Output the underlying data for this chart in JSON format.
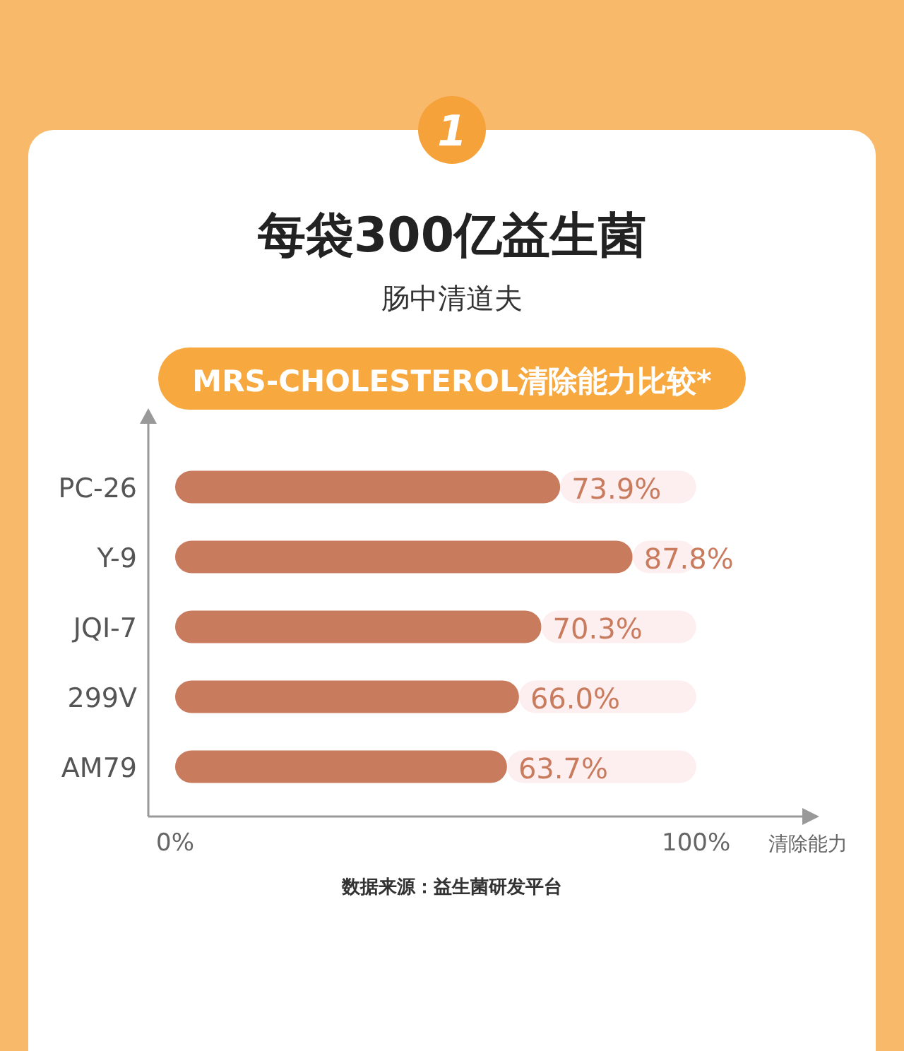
{
  "chart_data": {
    "type": "bar",
    "orientation": "horizontal",
    "stacked": true,
    "title": "每袋300亿益生菌",
    "subtitle": "肠中清道夫",
    "xlabel": "清除能力",
    "annotations": [
      "1",
      "MRS-CHOLESTEROL清除能力比较*",
      "数据来源：益生菌研发平台"
    ],
    "categories": [
      "PC-26",
      "Y-9",
      "JQI-7",
      "299V",
      "AM79"
    ],
    "series": [
      {
        "color": "#c97b5e",
        "values": [
          73.9,
          87.8,
          70.3,
          66.0,
          63.7
        ],
        "value_labels": [
          "73.9%",
          "87.8%",
          "70.3%",
          "66.0%",
          "63.7%"
        ]
      },
      {
        "color": "#fdeef0",
        "values": [
          26.1,
          12.2,
          29.7,
          34.0,
          36.3
        ]
      }
    ],
    "xlim": [
      0,
      122
    ],
    "xticks": [
      {
        "value": 0,
        "label": "0%"
      },
      {
        "value": 100,
        "label": "100%"
      }
    ],
    "grid": false
  }
}
